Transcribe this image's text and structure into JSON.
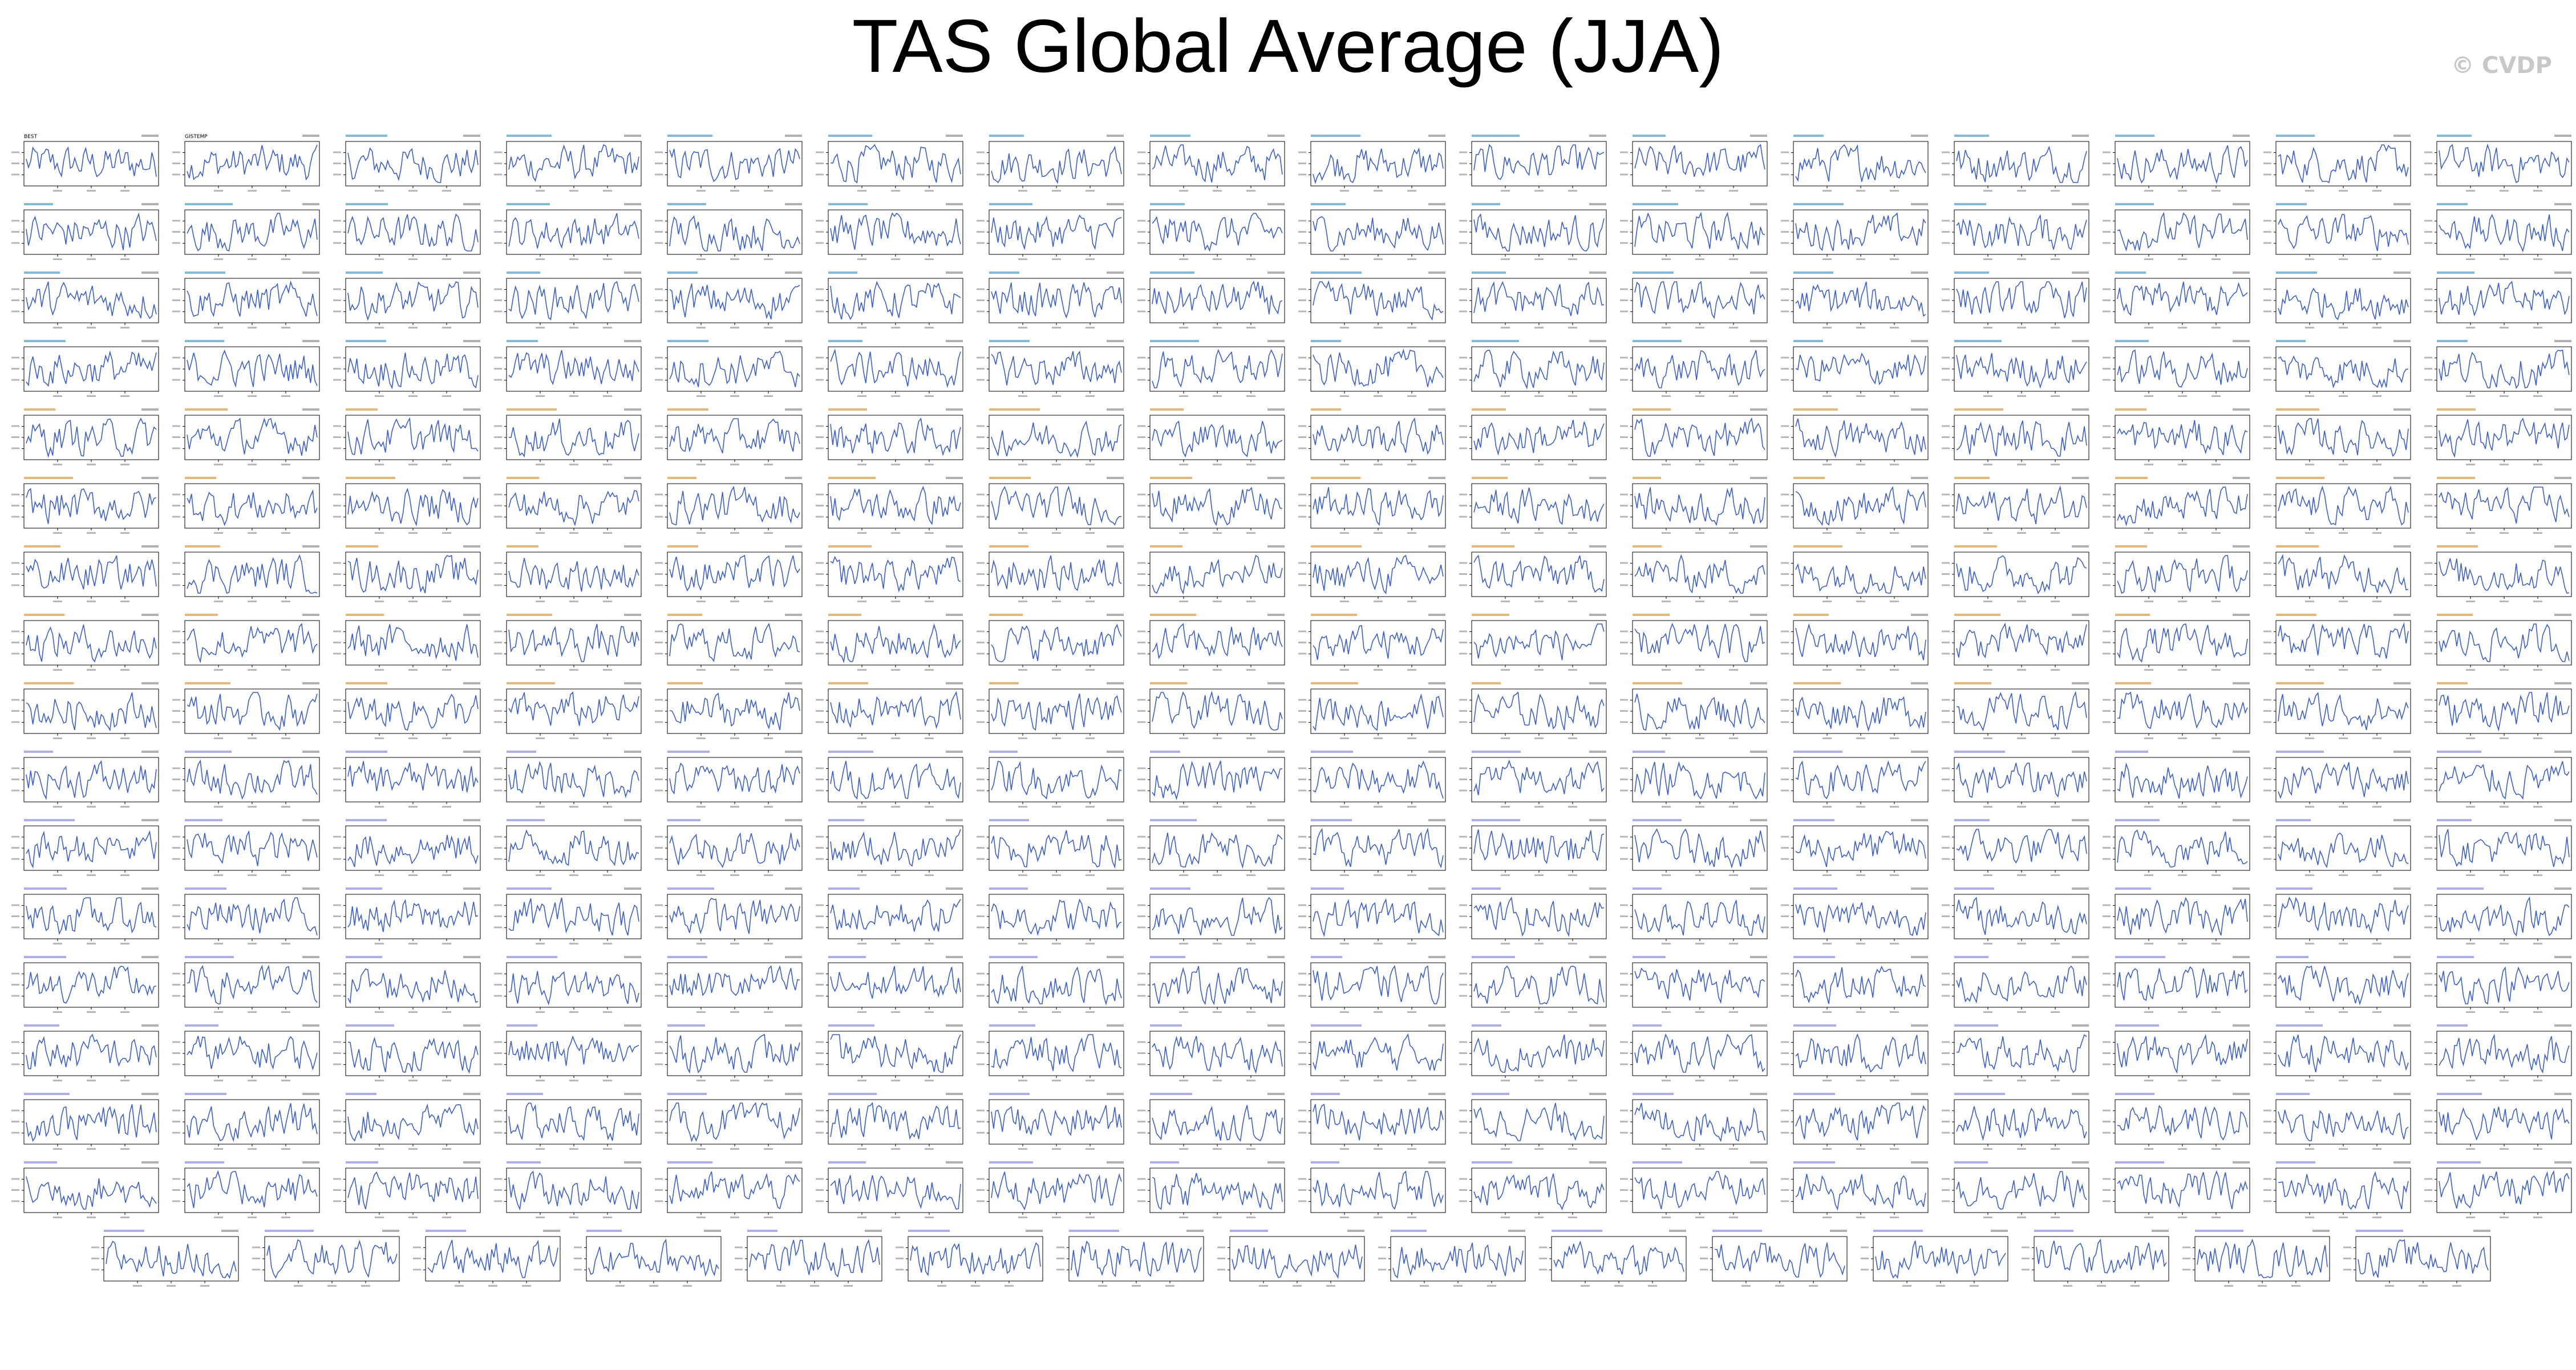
{
  "page": {
    "title": "TAS Global Average (JJA)",
    "watermark": "© CVDP"
  },
  "colors": {
    "series_line": "#3a5fd0",
    "panel_frame": "#000000",
    "label_ref": "#000000",
    "label_model_a": "#4aa0c8",
    "label_model_b": "#8a8ae0",
    "label_model_c": "#d89a40",
    "watermark": "#c8c8c8"
  },
  "chart_data": {
    "type": "line",
    "layout": "small-multiples",
    "rows": 17,
    "columns": 16,
    "panels_last_row": 15,
    "panel_count": 271,
    "x_ticks": [
      "1950",
      "1980",
      "2010"
    ],
    "labeled_panels": [
      {
        "index": 0,
        "label": "BEST"
      },
      {
        "index": 1,
        "label": "GISTEMP"
      }
    ]
  }
}
